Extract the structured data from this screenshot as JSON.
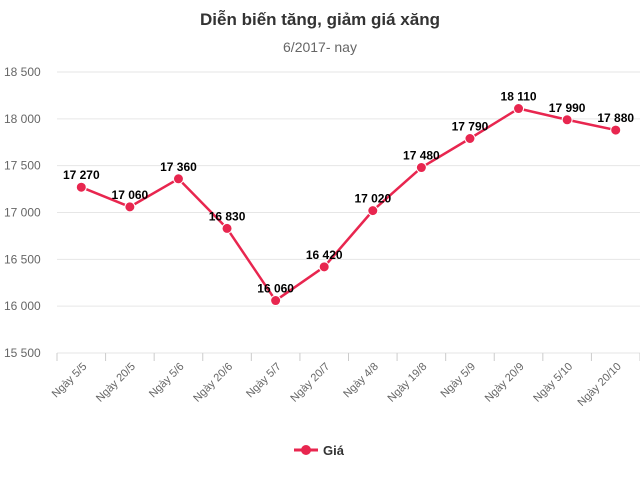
{
  "chart_data": {
    "type": "line",
    "title": "Diễn biến tăng, giảm giá xăng",
    "subtitle": "6/2017- nay",
    "categories": [
      "Ngày 5/5",
      "Ngày 20/5",
      "Ngày 5/6",
      "Ngày 20/6",
      "Ngày 5/7",
      "Ngày 20/7",
      "Ngày 4/8",
      "Ngày 19/8",
      "Ngày 5/9",
      "Ngày 20/9",
      "Ngày 5/10",
      "Ngày 20/10"
    ],
    "series": [
      {
        "name": "Giá",
        "values": [
          17270,
          17060,
          17360,
          16830,
          16060,
          16420,
          17020,
          17480,
          17790,
          18110,
          17990,
          17880
        ],
        "labels": [
          "17 270",
          "17 060",
          "17 360",
          "16 830",
          "16 060",
          "16 420",
          "17 020",
          "17 480",
          "17 790",
          "18 110",
          "17 990",
          "17 880"
        ],
        "color": "#e8264f"
      }
    ],
    "ylim": [
      15500,
      18500
    ],
    "yticks": [
      15500,
      16000,
      16500,
      17000,
      17500,
      18000,
      18500
    ],
    "ytick_labels": [
      "15 500",
      "16 000",
      "16 500",
      "17 000",
      "17 500",
      "18 000",
      "18 500"
    ],
    "grid": true,
    "legend": "bottom-center",
    "xlabel": "",
    "ylabel": ""
  }
}
